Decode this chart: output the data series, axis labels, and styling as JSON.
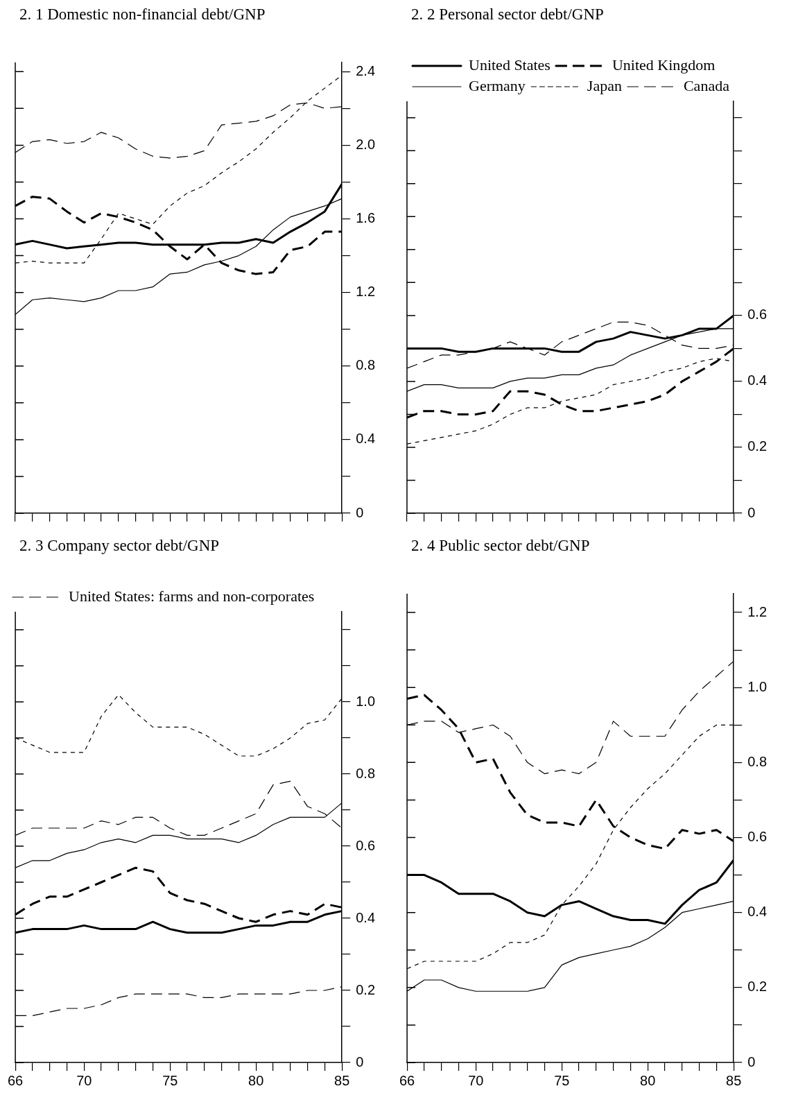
{
  "chart_data": [
    {
      "type": "line",
      "title": "2. 1  Domestic non-financial debt/GNP",
      "x": [
        1966,
        1967,
        1968,
        1969,
        1970,
        1971,
        1972,
        1973,
        1974,
        1975,
        1976,
        1977,
        1978,
        1979,
        1980,
        1981,
        1982,
        1983,
        1984,
        1985
      ],
      "xlim": [
        1966,
        1985
      ],
      "xticks": [
        {
          "value": 1966,
          "label": null
        },
        {
          "value": 1967,
          "label": null
        },
        {
          "value": 1968,
          "label": null
        },
        {
          "value": 1969,
          "label": null
        },
        {
          "value": 1970,
          "label": null
        },
        {
          "value": 1971,
          "label": null
        },
        {
          "value": 1972,
          "label": null
        },
        {
          "value": 1973,
          "label": null
        },
        {
          "value": 1974,
          "label": null
        },
        {
          "value": 1975,
          "label": null
        },
        {
          "value": 1976,
          "label": null
        },
        {
          "value": 1977,
          "label": null
        },
        {
          "value": 1978,
          "label": null
        },
        {
          "value": 1979,
          "label": null
        },
        {
          "value": 1980,
          "label": null
        },
        {
          "value": 1981,
          "label": null
        },
        {
          "value": 1982,
          "label": null
        },
        {
          "value": 1983,
          "label": null
        },
        {
          "value": 1984,
          "label": null
        },
        {
          "value": 1985,
          "label": null
        }
      ],
      "ylim": [
        0,
        2.45
      ],
      "yticks": [
        0,
        {
          "value": 0.2,
          "label": null
        },
        0.4,
        {
          "value": 0.6,
          "label": null
        },
        0.8,
        {
          "value": 1,
          "label": null
        },
        1.2,
        {
          "value": 1.4,
          "label": null
        },
        1.6,
        {
          "value": 1.8,
          "label": null
        },
        {
          "value": 2,
          "label": "2.0"
        },
        {
          "value": 2.2,
          "label": null
        },
        2.4
      ],
      "tick_labels": "y",
      "grid": false,
      "series": [
        {
          "color": "#000000",
          "line_style": "solid",
          "values": [
            1.46,
            1.48,
            1.46,
            1.44,
            1.45,
            1.46,
            1.47,
            1.47,
            1.46,
            1.46,
            1.46,
            1.46,
            1.47,
            1.47,
            1.49,
            1.47,
            1.53,
            1.58,
            1.64,
            1.79
          ]
        },
        {
          "color": "#000000",
          "line_style": "dashed",
          "values": [
            1.67,
            1.72,
            1.71,
            1.64,
            1.58,
            1.63,
            1.61,
            1.58,
            1.54,
            1.45,
            1.38,
            1.46,
            1.36,
            1.32,
            1.3,
            1.31,
            1.43,
            1.45,
            1.53,
            1.53
          ]
        },
        {
          "color": "#000000",
          "line_style": "solid",
          "values": [
            1.08,
            1.16,
            1.17,
            1.16,
            1.15,
            1.17,
            1.21,
            1.21,
            1.23,
            1.3,
            1.31,
            1.35,
            1.37,
            1.4,
            1.45,
            1.54,
            1.61,
            1.64,
            1.67,
            1.71
          ]
        },
        {
          "color": "#000000",
          "line_style": "dotted",
          "values": [
            1.36,
            1.37,
            1.36,
            1.36,
            1.36,
            1.49,
            1.63,
            1.6,
            1.57,
            1.67,
            1.74,
            1.78,
            1.85,
            1.91,
            1.98,
            2.07,
            2.15,
            2.24,
            2.31,
            2.38
          ]
        },
        {
          "color": "#000000",
          "line_style": "dashed",
          "values": [
            1.96,
            2.02,
            2.03,
            2.01,
            2.02,
            2.07,
            2.04,
            1.98,
            1.94,
            1.93,
            1.94,
            1.97,
            2.11,
            2.12,
            2.13,
            2.16,
            2.22,
            2.23,
            2.2,
            2.21
          ]
        }
      ]
    },
    {
      "type": "line",
      "title": "2. 2  Personal sector debt/GNP",
      "x": [
        1966,
        1967,
        1968,
        1969,
        1970,
        1971,
        1972,
        1973,
        1974,
        1975,
        1976,
        1977,
        1978,
        1979,
        1980,
        1981,
        1982,
        1983,
        1984,
        1985
      ],
      "xlim": [
        1966,
        1985
      ],
      "xticks": [
        {
          "value": 1966,
          "label": null
        },
        {
          "value": 1967,
          "label": null
        },
        {
          "value": 1968,
          "label": null
        },
        {
          "value": 1969,
          "label": null
        },
        {
          "value": 1970,
          "label": null
        },
        {
          "value": 1971,
          "label": null
        },
        {
          "value": 1972,
          "label": null
        },
        {
          "value": 1973,
          "label": null
        },
        {
          "value": 1974,
          "label": null
        },
        {
          "value": 1975,
          "label": null
        },
        {
          "value": 1976,
          "label": null
        },
        {
          "value": 1977,
          "label": null
        },
        {
          "value": 1978,
          "label": null
        },
        {
          "value": 1979,
          "label": null
        },
        {
          "value": 1980,
          "label": null
        },
        {
          "value": 1981,
          "label": null
        },
        {
          "value": 1982,
          "label": null
        },
        {
          "value": 1983,
          "label": null
        },
        {
          "value": 1984,
          "label": null
        },
        {
          "value": 1985,
          "label": null
        }
      ],
      "ylim": [
        0,
        1.25
      ],
      "yticks": [
        0,
        {
          "value": 0.1,
          "label": null
        },
        0.2,
        {
          "value": 0.3,
          "label": null
        },
        0.4,
        {
          "value": 0.5,
          "label": null
        },
        0.6,
        {
          "value": 0.7,
          "label": null
        },
        {
          "value": 0.8,
          "label": null
        },
        {
          "value": 0.9,
          "label": null
        },
        {
          "value": 1,
          "label": null
        },
        {
          "value": 1.1,
          "label": null
        },
        {
          "value": 1.2,
          "label": null
        }
      ],
      "tick_labels": "y",
      "grid": false,
      "legend": "top left",
      "series": [
        {
          "name": "United States",
          "color": "#000000",
          "line_style": "solid",
          "values": [
            0.5,
            0.5,
            0.5,
            0.49,
            0.49,
            0.5,
            0.5,
            0.5,
            0.5,
            0.49,
            0.49,
            0.52,
            0.53,
            0.55,
            0.54,
            0.53,
            0.54,
            0.56,
            0.56,
            0.6
          ]
        },
        {
          "name": "United Kingdom",
          "color": "#000000",
          "line_style": "dashed",
          "values": [
            0.29,
            0.31,
            0.31,
            0.3,
            0.3,
            0.31,
            0.37,
            0.37,
            0.36,
            0.33,
            0.31,
            0.31,
            0.32,
            0.33,
            0.34,
            0.36,
            0.4,
            0.43,
            0.46,
            0.5
          ]
        },
        {
          "name": "Germany",
          "color": "#000000",
          "line_style": "solid",
          "values": [
            0.37,
            0.39,
            0.39,
            0.38,
            0.38,
            0.38,
            0.4,
            0.41,
            0.41,
            0.42,
            0.42,
            0.44,
            0.45,
            0.48,
            0.5,
            0.52,
            0.54,
            0.55,
            0.56,
            0.56
          ]
        },
        {
          "name": "Japan",
          "color": "#000000",
          "line_style": "dotted",
          "values": [
            0.21,
            0.22,
            0.23,
            0.24,
            0.25,
            0.27,
            0.3,
            0.32,
            0.32,
            0.34,
            0.35,
            0.36,
            0.39,
            0.4,
            0.41,
            0.43,
            0.44,
            0.46,
            0.47,
            0.46
          ]
        },
        {
          "name": "Canada",
          "color": "#000000",
          "line_style": "dashed",
          "values": [
            0.44,
            0.46,
            0.48,
            0.48,
            0.49,
            0.5,
            0.52,
            0.5,
            0.48,
            0.52,
            0.54,
            0.56,
            0.58,
            0.58,
            0.57,
            0.54,
            0.51,
            0.5,
            0.5,
            0.51
          ]
        }
      ]
    },
    {
      "type": "line",
      "title": "2. 3  Company sector debt/GNP",
      "x": [
        1966,
        1967,
        1968,
        1969,
        1970,
        1971,
        1972,
        1973,
        1974,
        1975,
        1976,
        1977,
        1978,
        1979,
        1980,
        1981,
        1982,
        1983,
        1984,
        1985
      ],
      "xlim": [
        1966,
        1985
      ],
      "xticks": [
        {
          "value": 1966,
          "label": "66"
        },
        {
          "value": 1967,
          "label": null
        },
        {
          "value": 1968,
          "label": null
        },
        {
          "value": 1969,
          "label": null
        },
        {
          "value": 1970,
          "label": "70"
        },
        {
          "value": 1971,
          "label": null
        },
        {
          "value": 1972,
          "label": null
        },
        {
          "value": 1973,
          "label": null
        },
        {
          "value": 1974,
          "label": null
        },
        {
          "value": 1975,
          "label": "75"
        },
        {
          "value": 1976,
          "label": null
        },
        {
          "value": 1977,
          "label": null
        },
        {
          "value": 1978,
          "label": null
        },
        {
          "value": 1979,
          "label": null
        },
        {
          "value": 1980,
          "label": "80"
        },
        {
          "value": 1981,
          "label": null
        },
        {
          "value": 1982,
          "label": null
        },
        {
          "value": 1983,
          "label": null
        },
        {
          "value": 1984,
          "label": null
        },
        {
          "value": 1985,
          "label": "85"
        }
      ],
      "ylim": [
        0,
        1.25
      ],
      "yticks": [
        0,
        {
          "value": 0.1,
          "label": null
        },
        0.2,
        {
          "value": 0.3,
          "label": null
        },
        0.4,
        {
          "value": 0.5,
          "label": null
        },
        0.6,
        {
          "value": 0.7,
          "label": null
        },
        0.8,
        {
          "value": 0.9,
          "label": null
        },
        {
          "value": 1,
          "label": "1.0"
        },
        {
          "value": 1.1,
          "label": null
        },
        {
          "value": 1.2,
          "label": null
        }
      ],
      "grid": false,
      "legend": "top left",
      "series": [
        {
          "color": "#000000",
          "line_style": "solid",
          "values": [
            0.36,
            0.37,
            0.37,
            0.37,
            0.38,
            0.37,
            0.37,
            0.37,
            0.39,
            0.37,
            0.36,
            0.36,
            0.36,
            0.37,
            0.38,
            0.38,
            0.39,
            0.39,
            0.41,
            0.42
          ]
        },
        {
          "color": "#000000",
          "line_style": "dashed",
          "values": [
            0.41,
            0.44,
            0.46,
            0.46,
            0.48,
            0.5,
            0.52,
            0.54,
            0.53,
            0.47,
            0.45,
            0.44,
            0.42,
            0.4,
            0.39,
            0.41,
            0.42,
            0.41,
            0.44,
            0.43
          ]
        },
        {
          "color": "#000000",
          "line_style": "solid",
          "values": [
            0.54,
            0.56,
            0.56,
            0.58,
            0.59,
            0.61,
            0.62,
            0.61,
            0.63,
            0.63,
            0.62,
            0.62,
            0.62,
            0.61,
            0.63,
            0.66,
            0.68,
            0.68,
            0.68,
            0.72
          ]
        },
        {
          "color": "#000000",
          "line_style": "dotted",
          "values": [
            0.9,
            0.88,
            0.86,
            0.86,
            0.86,
            0.96,
            1.02,
            0.97,
            0.93,
            0.93,
            0.93,
            0.91,
            0.88,
            0.85,
            0.85,
            0.87,
            0.9,
            0.94,
            0.95,
            1.01
          ]
        },
        {
          "color": "#000000",
          "line_style": "dashed",
          "values": [
            0.63,
            0.65,
            0.65,
            0.65,
            0.65,
            0.67,
            0.66,
            0.68,
            0.68,
            0.65,
            0.63,
            0.63,
            0.65,
            0.67,
            0.69,
            0.77,
            0.78,
            0.71,
            0.69,
            0.65
          ]
        },
        {
          "name": "United States: farms and non-corporates",
          "color": "#000000",
          "line_style": "dashed",
          "values": [
            0.13,
            0.13,
            0.14,
            0.15,
            0.15,
            0.16,
            0.18,
            0.19,
            0.19,
            0.19,
            0.19,
            0.18,
            0.18,
            0.19,
            0.19,
            0.19,
            0.19,
            0.2,
            0.2,
            0.21
          ]
        }
      ]
    },
    {
      "type": "line",
      "title": "2. 4  Public sector debt/GNP",
      "x": [
        1966,
        1967,
        1968,
        1969,
        1970,
        1971,
        1972,
        1973,
        1974,
        1975,
        1976,
        1977,
        1978,
        1979,
        1980,
        1981,
        1982,
        1983,
        1984,
        1985
      ],
      "xlim": [
        1966,
        1985
      ],
      "xticks": [
        {
          "value": 1966,
          "label": "66"
        },
        {
          "value": 1967,
          "label": null
        },
        {
          "value": 1968,
          "label": null
        },
        {
          "value": 1969,
          "label": null
        },
        {
          "value": 1970,
          "label": "70"
        },
        {
          "value": 1971,
          "label": null
        },
        {
          "value": 1972,
          "label": null
        },
        {
          "value": 1973,
          "label": null
        },
        {
          "value": 1974,
          "label": null
        },
        {
          "value": 1975,
          "label": "75"
        },
        {
          "value": 1976,
          "label": null
        },
        {
          "value": 1977,
          "label": null
        },
        {
          "value": 1978,
          "label": null
        },
        {
          "value": 1979,
          "label": null
        },
        {
          "value": 1980,
          "label": "80"
        },
        {
          "value": 1981,
          "label": null
        },
        {
          "value": 1982,
          "label": null
        },
        {
          "value": 1983,
          "label": null
        },
        {
          "value": 1984,
          "label": null
        },
        {
          "value": 1985,
          "label": "85"
        }
      ],
      "ylim": [
        0,
        1.25
      ],
      "yticks": [
        0,
        {
          "value": 0.1,
          "label": null
        },
        0.2,
        {
          "value": 0.3,
          "label": null
        },
        0.4,
        {
          "value": 0.5,
          "label": null
        },
        0.6,
        {
          "value": 0.7,
          "label": null
        },
        0.8,
        {
          "value": 0.9,
          "label": null
        },
        {
          "value": 1,
          "label": "1.0"
        },
        {
          "value": 1.1,
          "label": null
        },
        1.2
      ],
      "grid": false,
      "series": [
        {
          "color": "#000000",
          "line_style": "solid",
          "values": [
            0.5,
            0.5,
            0.48,
            0.45,
            0.45,
            0.45,
            0.43,
            0.4,
            0.39,
            0.42,
            0.43,
            0.41,
            0.39,
            0.38,
            0.38,
            0.37,
            0.42,
            0.46,
            0.48,
            0.54
          ]
        },
        {
          "color": "#000000",
          "line_style": "dashed",
          "values": [
            0.97,
            0.98,
            0.94,
            0.89,
            0.8,
            0.81,
            0.72,
            0.66,
            0.64,
            0.64,
            0.63,
            0.7,
            0.63,
            0.6,
            0.58,
            0.57,
            0.62,
            0.61,
            0.62,
            0.59
          ]
        },
        {
          "color": "#000000",
          "line_style": "solid",
          "values": [
            0.19,
            0.22,
            0.22,
            0.2,
            0.19,
            0.19,
            0.19,
            0.19,
            0.2,
            0.26,
            0.28,
            0.29,
            0.3,
            0.31,
            0.33,
            0.36,
            0.4,
            0.41,
            0.42,
            0.43
          ]
        },
        {
          "color": "#000000",
          "line_style": "dotted",
          "values": [
            0.25,
            0.27,
            0.27,
            0.27,
            0.27,
            0.29,
            0.32,
            0.32,
            0.34,
            0.42,
            0.47,
            0.53,
            0.62,
            0.68,
            0.73,
            0.77,
            0.82,
            0.87,
            0.9,
            0.9
          ]
        },
        {
          "color": "#000000",
          "line_style": "dashed",
          "values": [
            0.9,
            0.91,
            0.91,
            0.88,
            0.89,
            0.9,
            0.87,
            0.8,
            0.77,
            0.78,
            0.77,
            0.8,
            0.91,
            0.87,
            0.87,
            0.87,
            0.94,
            0.99,
            1.03,
            1.07
          ]
        }
      ]
    }
  ]
}
